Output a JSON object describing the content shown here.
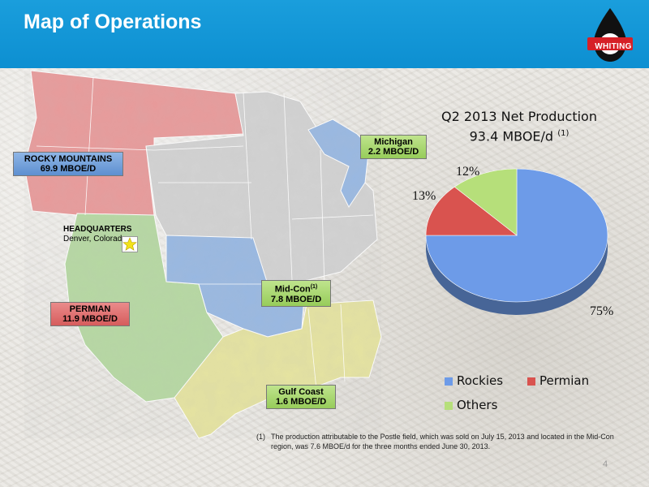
{
  "header": {
    "title": "Map of Operations"
  },
  "logo": {
    "text": "WHITING"
  },
  "regions": {
    "rocky_mountains": {
      "name": "ROCKY MOUNTAINS",
      "value": "69.9 MBOE/D",
      "color": "#e89090"
    },
    "permian": {
      "name": "PERMIAN",
      "value": "11.9 MBOE/D",
      "color": "#e89090"
    },
    "mid_con": {
      "name": "Mid-Con",
      "sup": "(1)",
      "value": "7.8 MBOE/D",
      "color": "#a5d86a"
    },
    "michigan": {
      "name": "Michigan",
      "value": "2.2 MBOE/D",
      "color": "#a5d86a"
    },
    "gulf_coast": {
      "name": "Gulf Coast",
      "value": "1.6 MBOE/D",
      "color": "#a5d86a"
    }
  },
  "headquarters": {
    "title": "HEADQUARTERS",
    "location": "Denver, Colorado"
  },
  "chart_data": {
    "type": "pie",
    "title": "Q2 2013 Net Production",
    "subtitle": "93.4 MBOE/d",
    "subtitle_sup": "(1)",
    "categories": [
      "Rockies",
      "Permian",
      "Others"
    ],
    "values": [
      75,
      13,
      12
    ],
    "labels": [
      "75%",
      "13%",
      "12%"
    ],
    "colors": [
      "#6d9be8",
      "#d9534f",
      "#b6df7a"
    ],
    "legend": "bottom"
  },
  "footnote": {
    "num": "(1)",
    "text": "The production attributable to the Postle field, which was sold on July 15, 2013 and located in the Mid-Con region, was 7.6 MBOE/d for the three months ended June 30, 2013."
  },
  "page_number": "4"
}
